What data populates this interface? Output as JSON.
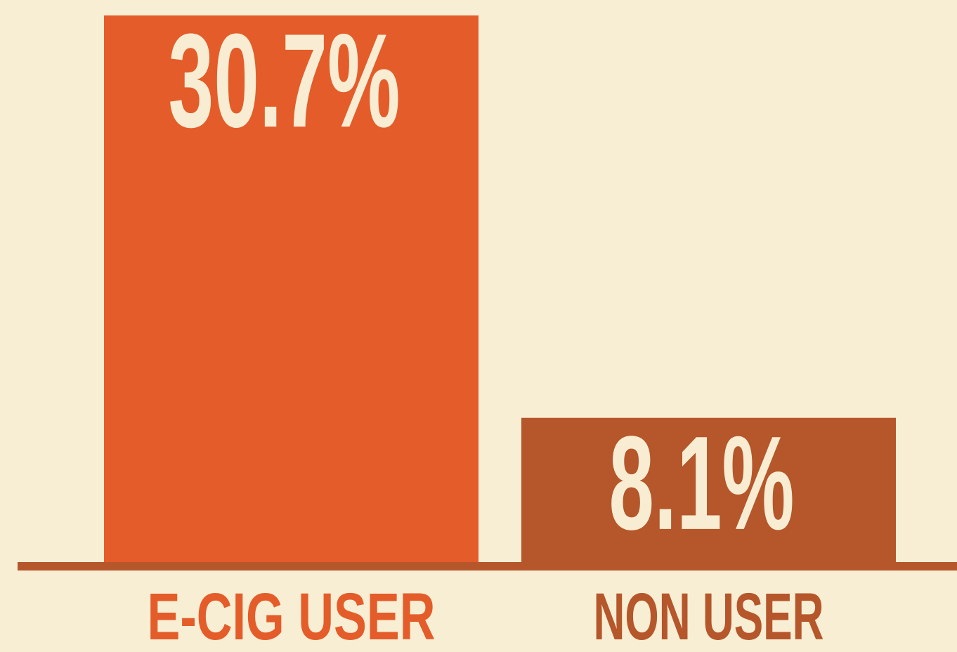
{
  "chart_data": {
    "type": "bar",
    "categories": [
      "E-CIG USER",
      "NON USER"
    ],
    "values": [
      30.7,
      8.1
    ],
    "value_labels": [
      "30.7%",
      "8.1%"
    ],
    "colors": [
      "#e45c2a",
      "#b5562b"
    ]
  }
}
